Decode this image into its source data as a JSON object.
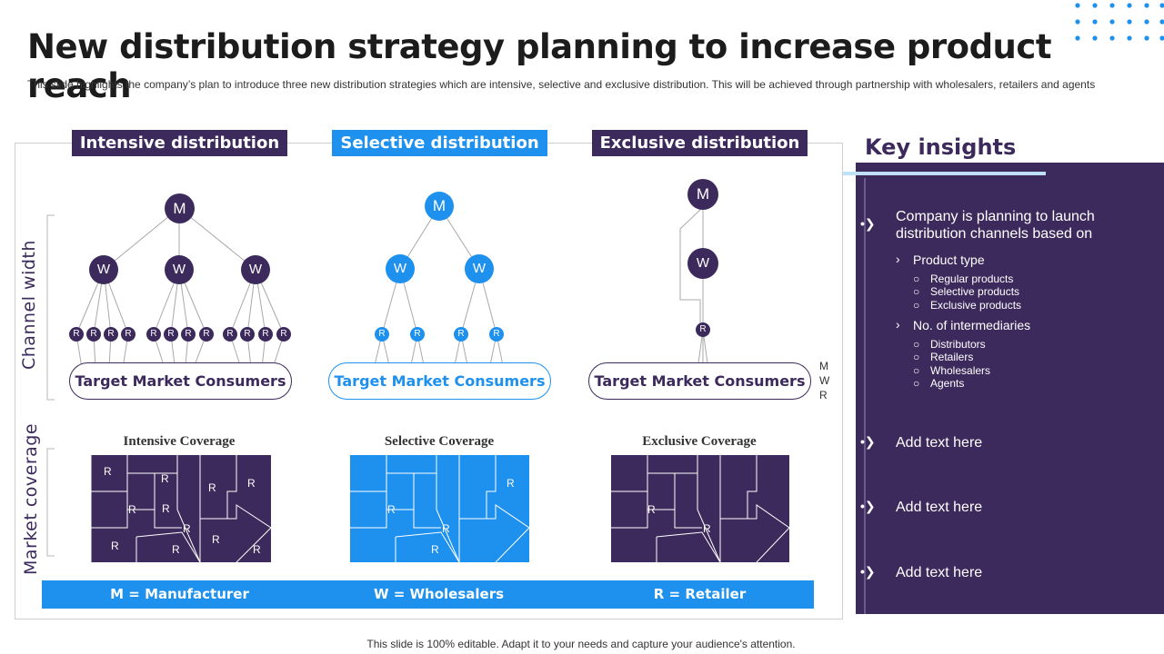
{
  "title": "New distribution strategy planning to increase product reach",
  "subtitle": "This slide highlights the company’s plan to introduce three new distribution strategies which are intensive, selective and exclusive distribution. This will be achieved through partnership with wholesalers, retailers and agents",
  "footer": "This slide is 100% editable. Adapt it to your needs and capture your audience's attention.",
  "axis_labels": {
    "channel_width": "Channel width",
    "market_coverage": "Market coverage"
  },
  "strategies": [
    {
      "heading": "Intensive distribution",
      "target": "Target Market Consumers",
      "coverage_title": "Intensive Coverage"
    },
    {
      "heading": "Selective distribution",
      "target": "Target Market Consumers",
      "coverage_title": "Selective Coverage"
    },
    {
      "heading": "Exclusive distribution",
      "target": "Target Market Consumers",
      "coverage_title": "Exclusive Coverage"
    }
  ],
  "node_letters": {
    "manufacturer": "M",
    "wholesaler": "W",
    "retailer": "R"
  },
  "mwr_legend": [
    "M",
    "W",
    "R"
  ],
  "legend": {
    "m": "M = Manufacturer",
    "w": "W = Wholesalers",
    "r": "R = Retailer"
  },
  "key_insights": {
    "title": "Key insights",
    "main": "Company is planning to launch distribution channels  based on",
    "product_type": "Product type",
    "product_items": [
      "Regular products",
      "Selective products",
      "Exclusive products"
    ],
    "intermediaries": "No. of intermediaries",
    "intermediary_items": [
      "Distributors",
      "Retailers",
      "Wholesalers",
      "Agents"
    ],
    "placeholders": [
      "Add text here",
      "Add text here",
      "Add text here"
    ]
  },
  "colors": {
    "purple": "#3d2a5c",
    "blue": "#1e90ee",
    "light_blue": "#bfe0fb"
  }
}
